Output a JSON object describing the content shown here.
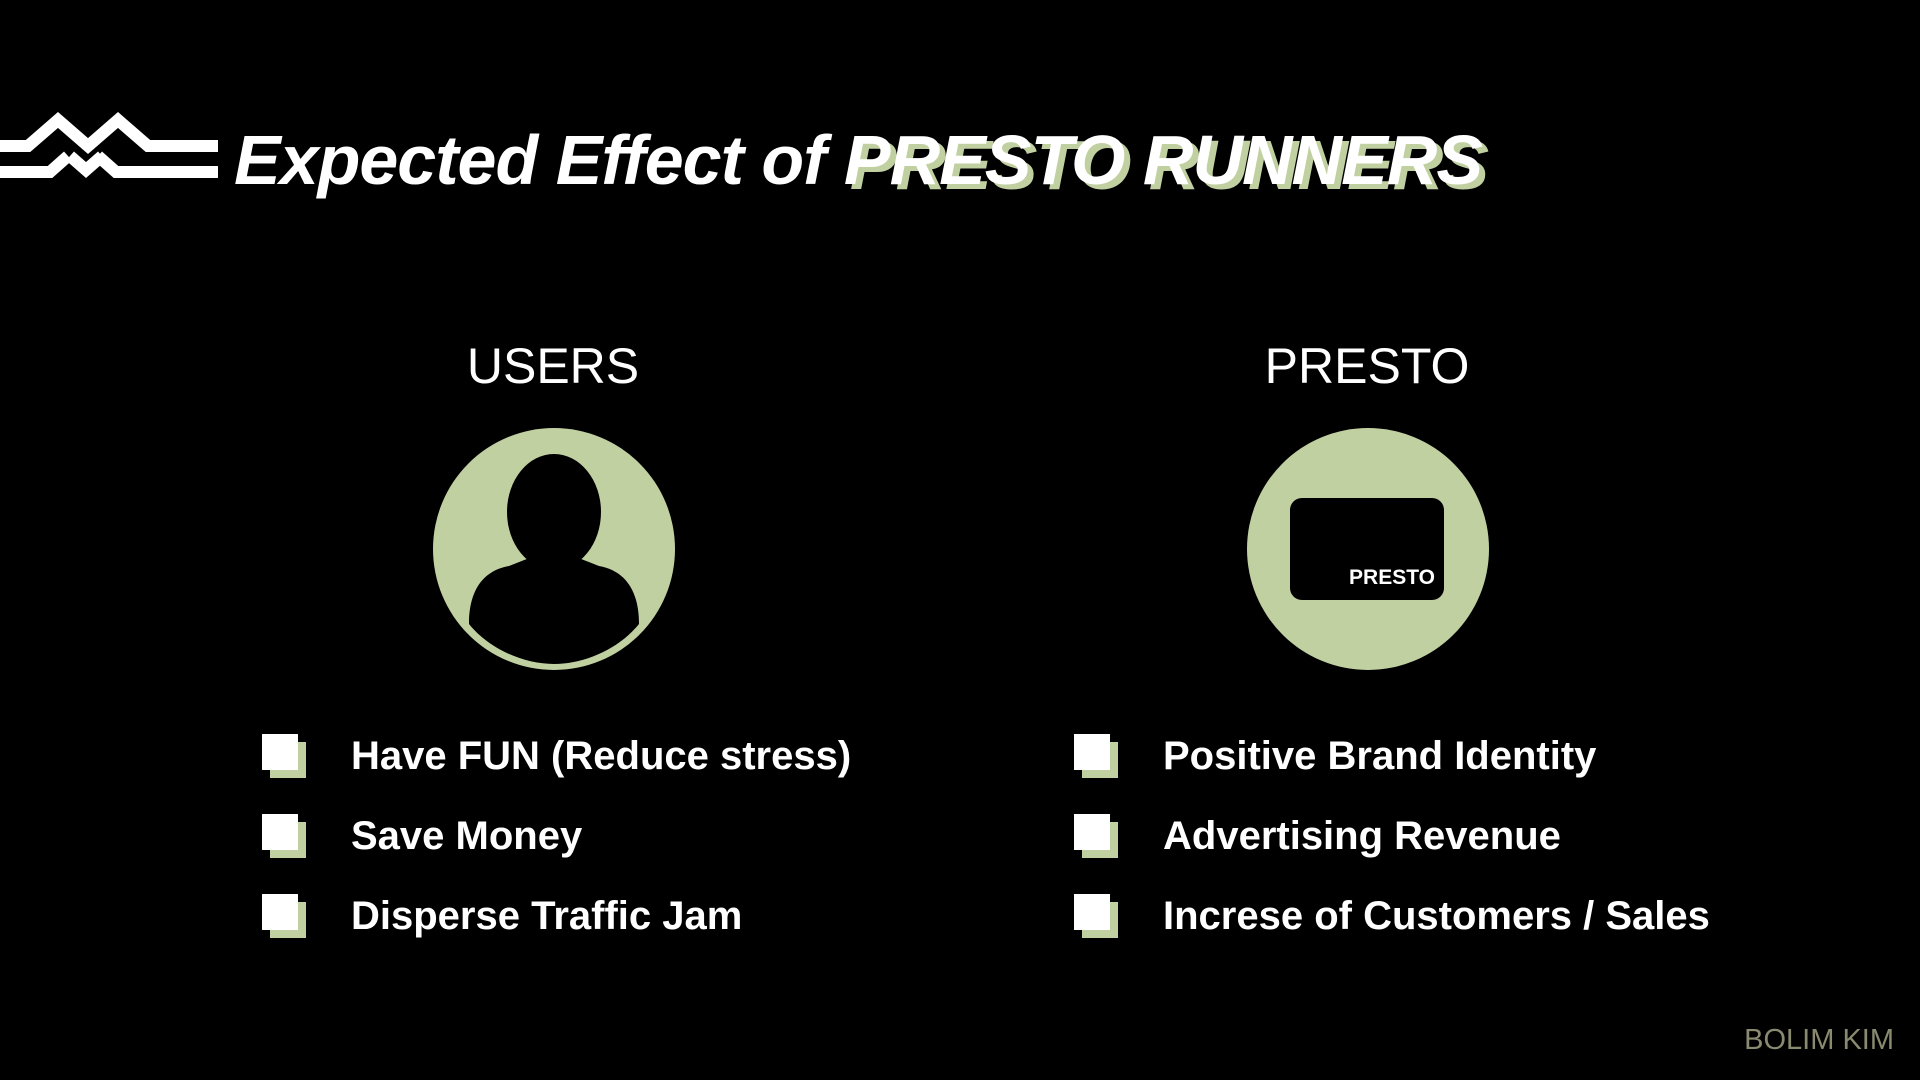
{
  "slide": {
    "title_prefix": "Expected Effect of ",
    "title_accent": "PRESTO RUNNERS",
    "credit": "BOLIM KIM",
    "accent_color": "#c1d0a1",
    "background_color": "#000000",
    "logo_icon": "zigzag-lines-logo"
  },
  "columns": {
    "users": {
      "title": "USERS",
      "icon": "person-icon",
      "items": [
        "Have FUN (Reduce stress)",
        "Save Money",
        "Disperse Traffic Jam"
      ]
    },
    "presto": {
      "title": "PRESTO",
      "icon": "presto-card-icon",
      "card_label": "PRESTO",
      "items": [
        "Positive Brand Identity",
        "Advertising Revenue",
        "Increse of Customers / Sales"
      ]
    }
  }
}
